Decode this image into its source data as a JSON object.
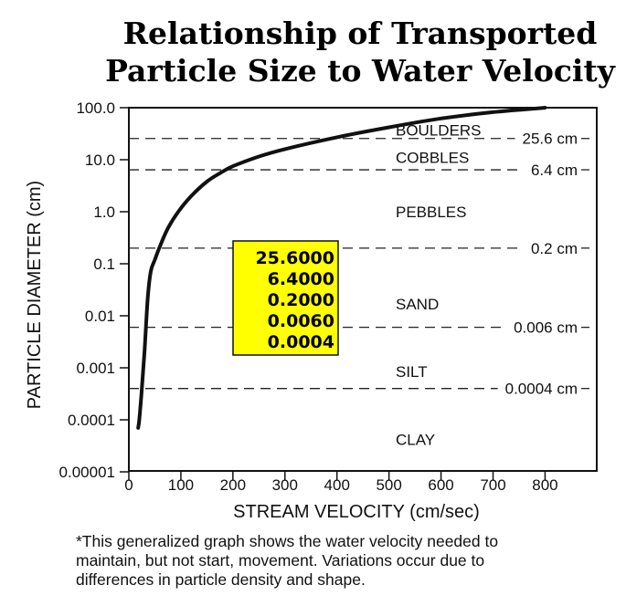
{
  "title_lines": [
    "Relationship of Transported",
    "Particle Size to Water Velocity"
  ],
  "footnote_lines": [
    "*This generalized graph shows the water velocity needed to",
    "maintain, but not start, movement. Variations occur due to",
    "differences in particle density and shape."
  ],
  "chart_data": {
    "type": "line",
    "title": "Relationship of Transported Particle Size to Water Velocity",
    "xlabel": "STREAM VELOCITY (cm/sec)",
    "ylabel": "PARTICLE DIAMETER (cm)",
    "x_scale": "linear",
    "y_scale": "log",
    "xlim": [
      0,
      900
    ],
    "ylim": [
      1e-05,
      100
    ],
    "grid": false,
    "x_ticks": [
      {
        "value": 0,
        "label": "0"
      },
      {
        "value": 100,
        "label": "100"
      },
      {
        "value": 200,
        "label": "200"
      },
      {
        "value": 300,
        "label": "300"
      },
      {
        "value": 400,
        "label": "400"
      },
      {
        "value": 500,
        "label": "500"
      },
      {
        "value": 600,
        "label": "600"
      },
      {
        "value": 700,
        "label": "700"
      },
      {
        "value": 800,
        "label": "800"
      }
    ],
    "y_ticks": [
      {
        "value": 100,
        "label": "100.0"
      },
      {
        "value": 10,
        "label": "10.0"
      },
      {
        "value": 1,
        "label": "1.0"
      },
      {
        "value": 0.1,
        "label": "0.1"
      },
      {
        "value": 0.01,
        "label": "0.01"
      },
      {
        "value": 0.001,
        "label": "0.001"
      },
      {
        "value": 0.0001,
        "label": "0.0001"
      },
      {
        "value": 1e-05,
        "label": "0.00001"
      }
    ],
    "series": [
      {
        "x": [
          18,
          20,
          24,
          30,
          36,
          42,
          50,
          60,
          75,
          95,
          120,
          150,
          175,
          200,
          250,
          300,
          400,
          500,
          600,
          700,
          780,
          800
        ],
        "y": [
          7e-05,
          0.0001,
          0.0003,
          0.002,
          0.02,
          0.07,
          0.12,
          0.22,
          0.48,
          1.0,
          2.0,
          3.8,
          5.5,
          7.5,
          11.5,
          16,
          27,
          42,
          62,
          82,
          96,
          100
        ],
        "color": "#111111"
      }
    ],
    "boundaries": [
      {
        "value": 25.6,
        "label": "25.6 cm"
      },
      {
        "value": 6.4,
        "label": "6.4 cm"
      },
      {
        "value": 0.2,
        "label": "0.2 cm"
      },
      {
        "value": 0.006,
        "label": "0.006 cm"
      },
      {
        "value": 0.0004,
        "label": "0.0004 cm"
      }
    ],
    "class_labels": [
      {
        "text": "BOULDERS",
        "y": 37
      },
      {
        "text": "COBBLES",
        "y": 11
      },
      {
        "text": "PEBBLES",
        "y": 1.0
      },
      {
        "text": "SAND",
        "y": 0.017
      },
      {
        "text": "SILT",
        "y": 0.00085
      },
      {
        "text": "CLAY",
        "y": 4.2e-05
      }
    ],
    "highlight_box": {
      "values": [
        "25.6000",
        "6.4000",
        "0.2000",
        "0.0060",
        "0.0004"
      ],
      "background": "#ffff00"
    }
  }
}
